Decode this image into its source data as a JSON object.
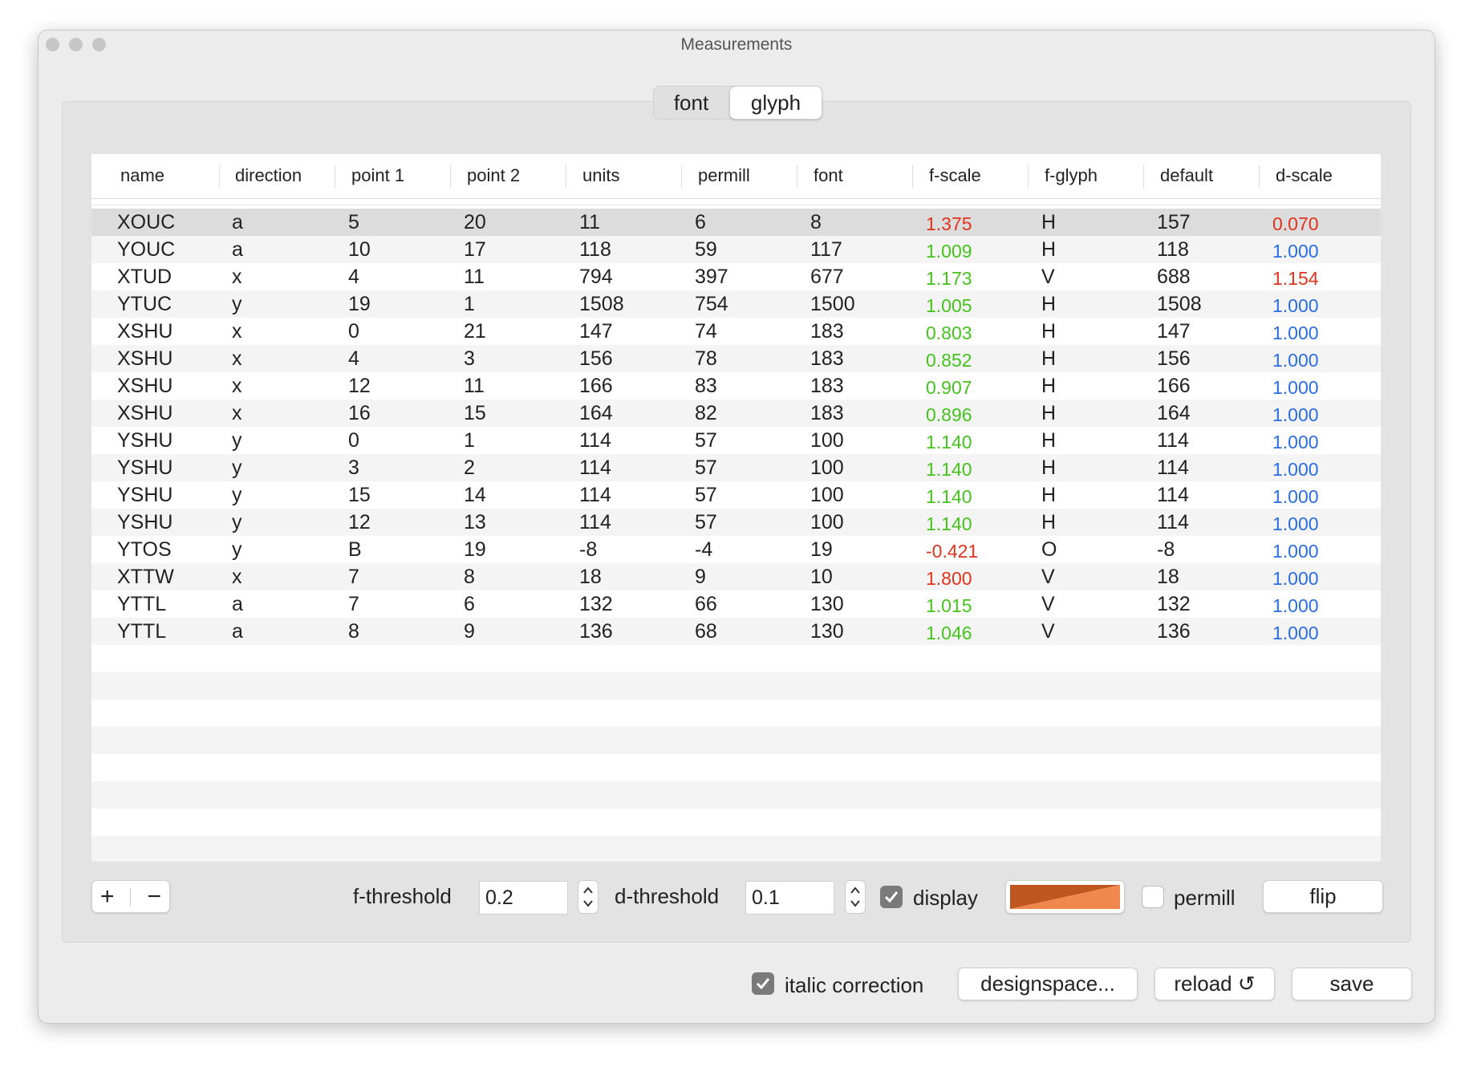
{
  "window": {
    "title": "Measurements"
  },
  "tabs": {
    "items": [
      "font",
      "glyph"
    ],
    "selected": 1
  },
  "palette": {
    "red": "#e0331d",
    "green": "#46c21f",
    "blue": "#2a6de0"
  },
  "table": {
    "columns": [
      "name",
      "direction",
      "point 1",
      "point 2",
      "units",
      "permill",
      "font",
      "f-scale",
      "f-glyph",
      "default",
      "d-scale"
    ],
    "selected_row": 0,
    "rows": [
      {
        "cells": [
          "XOUC",
          "a",
          "5",
          "20",
          "11",
          "6",
          "8",
          "1.375",
          "H",
          "157",
          "0.070"
        ],
        "f_color": "red",
        "d_color": "red"
      },
      {
        "cells": [
          "YOUC",
          "a",
          "10",
          "17",
          "118",
          "59",
          "117",
          "1.009",
          "H",
          "118",
          "1.000"
        ],
        "f_color": "green",
        "d_color": "blue"
      },
      {
        "cells": [
          "XTUD",
          "x",
          "4",
          "11",
          "794",
          "397",
          "677",
          "1.173",
          "V",
          "688",
          "1.154"
        ],
        "f_color": "green",
        "d_color": "red"
      },
      {
        "cells": [
          "YTUC",
          "y",
          "19",
          "1",
          "1508",
          "754",
          "1500",
          "1.005",
          "H",
          "1508",
          "1.000"
        ],
        "f_color": "green",
        "d_color": "blue"
      },
      {
        "cells": [
          "XSHU",
          "x",
          "0",
          "21",
          "147",
          "74",
          "183",
          "0.803",
          "H",
          "147",
          "1.000"
        ],
        "f_color": "green",
        "d_color": "blue"
      },
      {
        "cells": [
          "XSHU",
          "x",
          "4",
          "3",
          "156",
          "78",
          "183",
          "0.852",
          "H",
          "156",
          "1.000"
        ],
        "f_color": "green",
        "d_color": "blue"
      },
      {
        "cells": [
          "XSHU",
          "x",
          "12",
          "11",
          "166",
          "83",
          "183",
          "0.907",
          "H",
          "166",
          "1.000"
        ],
        "f_color": "green",
        "d_color": "blue"
      },
      {
        "cells": [
          "XSHU",
          "x",
          "16",
          "15",
          "164",
          "82",
          "183",
          "0.896",
          "H",
          "164",
          "1.000"
        ],
        "f_color": "green",
        "d_color": "blue"
      },
      {
        "cells": [
          "YSHU",
          "y",
          "0",
          "1",
          "114",
          "57",
          "100",
          "1.140",
          "H",
          "114",
          "1.000"
        ],
        "f_color": "green",
        "d_color": "blue"
      },
      {
        "cells": [
          "YSHU",
          "y",
          "3",
          "2",
          "114",
          "57",
          "100",
          "1.140",
          "H",
          "114",
          "1.000"
        ],
        "f_color": "green",
        "d_color": "blue"
      },
      {
        "cells": [
          "YSHU",
          "y",
          "15",
          "14",
          "114",
          "57",
          "100",
          "1.140",
          "H",
          "114",
          "1.000"
        ],
        "f_color": "green",
        "d_color": "blue"
      },
      {
        "cells": [
          "YSHU",
          "y",
          "12",
          "13",
          "114",
          "57",
          "100",
          "1.140",
          "H",
          "114",
          "1.000"
        ],
        "f_color": "green",
        "d_color": "blue"
      },
      {
        "cells": [
          "YTOS",
          "y",
          "B",
          "19",
          "-8",
          "-4",
          "19",
          "-0.421",
          "O",
          "-8",
          "1.000"
        ],
        "f_color": "red",
        "d_color": "blue"
      },
      {
        "cells": [
          "XTTW",
          "x",
          "7",
          "8",
          "18",
          "9",
          "10",
          "1.800",
          "V",
          "18",
          "1.000"
        ],
        "f_color": "red",
        "d_color": "blue"
      },
      {
        "cells": [
          "YTTL",
          "a",
          "7",
          "6",
          "132",
          "66",
          "130",
          "1.015",
          "V",
          "132",
          "1.000"
        ],
        "f_color": "green",
        "d_color": "blue"
      },
      {
        "cells": [
          "YTTL",
          "a",
          "8",
          "9",
          "136",
          "68",
          "130",
          "1.046",
          "V",
          "136",
          "1.000"
        ],
        "f_color": "green",
        "d_color": "blue"
      }
    ]
  },
  "controls": {
    "f_threshold_label": "f-threshold",
    "f_threshold": "0.2",
    "d_threshold_label": "d-threshold",
    "d_threshold": "0.1",
    "display_label": "display",
    "display_checked": true,
    "display_colors": [
      "#c0561f",
      "#f0884e"
    ],
    "permill_label": "permill",
    "permill_checked": false,
    "flip_label": "flip"
  },
  "footer": {
    "italic_label": "italic correction",
    "italic_checked": true,
    "designspace_label": "designspace...",
    "reload_label": "reload ↺",
    "save_label": "save"
  }
}
